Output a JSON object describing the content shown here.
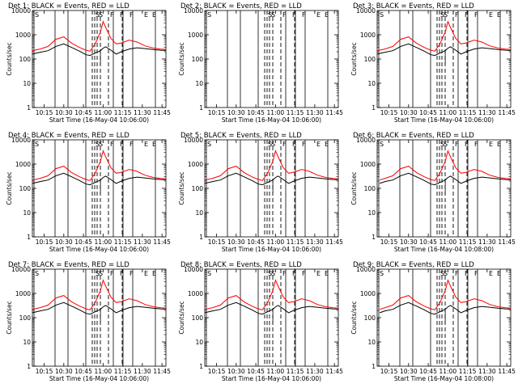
{
  "figure": {
    "colors": {
      "events": "#000000",
      "lld": "#ff0000"
    }
  },
  "chart_data": [
    {
      "type": "line",
      "title": "Det 1: BLACK = Events, RED = LLD",
      "xlabel": "Start Time (16-May-04 10:06:00)",
      "ylabel": "Counts/sec",
      "x_ticks": [
        "10:15",
        "10:30",
        "10:45",
        "11:00",
        "11:15",
        "11:30",
        "11:45"
      ],
      "y_ticks": [
        "1",
        "10",
        "100",
        "1000",
        "10000"
      ],
      "y_scale": "log",
      "ylim": [
        1,
        10000
      ],
      "xlim": [
        "10:06",
        "11:48"
      ],
      "markers": [
        "S",
        "S",
        "S",
        "F",
        "F",
        "F",
        "E",
        "E"
      ],
      "has_data": true,
      "x": [
        "10:06",
        "10:12",
        "10:18",
        "10:24",
        "10:30",
        "10:36",
        "10:42",
        "10:47",
        "10:50",
        "10:54",
        "10:58",
        "11:00",
        "11:02",
        "11:06",
        "11:10",
        "11:14",
        "11:20",
        "11:26",
        "11:32",
        "11:38",
        "11:44",
        "11:48"
      ],
      "series": [
        {
          "name": "Events",
          "color": "#000000",
          "values": [
            160,
            190,
            220,
            330,
            420,
            300,
            210,
            150,
            140,
            175,
            220,
            280,
            320,
            230,
            160,
            200,
            260,
            290,
            270,
            245,
            230,
            225
          ]
        },
        {
          "name": "LLD",
          "color": "#ff0000",
          "values": [
            220,
            260,
            330,
            650,
            820,
            450,
            300,
            230,
            210,
            420,
            1300,
            3500,
            2000,
            700,
            420,
            460,
            600,
            500,
            350,
            285,
            255,
            250
          ]
        }
      ]
    },
    {
      "type": "line",
      "title": "Det 2: BLACK = Events, RED = LLD",
      "xlabel": "Start Time (16-May-04 10:06:00)",
      "ylabel": "Counts/sec",
      "x_ticks": [
        "10:15",
        "10:30",
        "10:45",
        "11:00",
        "11:15",
        "11:30",
        "11:45"
      ],
      "y_ticks": [
        "1",
        "10",
        "100",
        "1000",
        "10000"
      ],
      "y_scale": "log",
      "ylim": [
        1,
        10000
      ],
      "xlim": [
        "10:06",
        "11:48"
      ],
      "markers": [
        "S",
        "S",
        "S",
        "F",
        "F",
        "F",
        "E",
        "E"
      ],
      "has_data": false,
      "x": [],
      "series": []
    },
    {
      "type": "line",
      "title": "Det 3: BLACK = Events, RED = LLD",
      "xlabel": "Start Time (16-May-04 10:06:00)",
      "ylabel": "Counts/sec",
      "x_ticks": [
        "10:15",
        "10:30",
        "10:45",
        "11:00",
        "11:15",
        "11:30",
        "11:45"
      ],
      "y_ticks": [
        "1",
        "10",
        "100",
        "1000",
        "10000"
      ],
      "y_scale": "log",
      "ylim": [
        1,
        10000
      ],
      "xlim": [
        "10:06",
        "11:48"
      ],
      "markers": [
        "S",
        "S",
        "S",
        "F",
        "F",
        "F",
        "E",
        "E"
      ],
      "has_data": true,
      "x": [
        "10:06",
        "10:12",
        "10:18",
        "10:24",
        "10:30",
        "10:36",
        "10:42",
        "10:47",
        "10:50",
        "10:54",
        "10:58",
        "11:00",
        "11:02",
        "11:06",
        "11:10",
        "11:14",
        "11:20",
        "11:26",
        "11:32",
        "11:38",
        "11:44",
        "11:48"
      ],
      "series": [
        {
          "name": "Events",
          "color": "#000000",
          "values": [
            160,
            190,
            220,
            330,
            420,
            300,
            210,
            150,
            140,
            175,
            220,
            280,
            320,
            230,
            160,
            200,
            260,
            290,
            270,
            245,
            230,
            225
          ]
        },
        {
          "name": "LLD",
          "color": "#ff0000",
          "values": [
            220,
            260,
            330,
            650,
            820,
            450,
            300,
            230,
            210,
            420,
            1300,
            3500,
            2000,
            700,
            420,
            460,
            600,
            500,
            350,
            285,
            255,
            250
          ]
        }
      ]
    },
    {
      "type": "line",
      "title": "Det 4: BLACK = Events, RED = LLD",
      "xlabel": "Start Time (16-May-04 10:06:00)",
      "ylabel": "Counts/sec",
      "x_ticks": [
        "10:15",
        "10:30",
        "10:45",
        "11:00",
        "11:15",
        "11:30",
        "11:45"
      ],
      "y_ticks": [
        "1",
        "10",
        "100",
        "1000",
        "10000"
      ],
      "y_scale": "log",
      "ylim": [
        1,
        10000
      ],
      "xlim": [
        "10:06",
        "11:48"
      ],
      "markers": [
        "S",
        "S",
        "S",
        "F",
        "F",
        "F",
        "E",
        "E"
      ],
      "has_data": true,
      "x": [
        "10:06",
        "10:12",
        "10:18",
        "10:24",
        "10:30",
        "10:36",
        "10:42",
        "10:47",
        "10:50",
        "10:54",
        "10:58",
        "11:00",
        "11:02",
        "11:06",
        "11:10",
        "11:14",
        "11:20",
        "11:26",
        "11:32",
        "11:38",
        "11:44",
        "11:48"
      ],
      "series": [
        {
          "name": "Events",
          "color": "#000000",
          "values": [
            160,
            190,
            220,
            330,
            420,
            300,
            210,
            150,
            140,
            175,
            220,
            280,
            320,
            230,
            160,
            200,
            260,
            290,
            270,
            245,
            230,
            225
          ]
        },
        {
          "name": "LLD",
          "color": "#ff0000",
          "values": [
            220,
            260,
            330,
            650,
            820,
            450,
            300,
            230,
            210,
            420,
            1300,
            3500,
            2000,
            700,
            420,
            460,
            600,
            500,
            350,
            285,
            255,
            250
          ]
        }
      ]
    },
    {
      "type": "line",
      "title": "Det 5: BLACK = Events, RED = LLD",
      "xlabel": "Start Time (16-May-04 10:06:00)",
      "ylabel": "Counts/sec",
      "x_ticks": [
        "10:15",
        "10:30",
        "10:45",
        "11:00",
        "11:15",
        "11:30",
        "11:45"
      ],
      "y_ticks": [
        "1",
        "10",
        "100",
        "1000",
        "10000"
      ],
      "y_scale": "log",
      "ylim": [
        1,
        10000
      ],
      "xlim": [
        "10:06",
        "11:48"
      ],
      "markers": [
        "S",
        "S",
        "S",
        "F",
        "F",
        "F",
        "E",
        "E"
      ],
      "has_data": true,
      "x": [
        "10:06",
        "10:12",
        "10:18",
        "10:24",
        "10:30",
        "10:36",
        "10:42",
        "10:47",
        "10:50",
        "10:54",
        "10:58",
        "11:00",
        "11:02",
        "11:06",
        "11:10",
        "11:14",
        "11:20",
        "11:26",
        "11:32",
        "11:38",
        "11:44",
        "11:48"
      ],
      "series": [
        {
          "name": "Events",
          "color": "#000000",
          "values": [
            160,
            190,
            220,
            330,
            420,
            300,
            210,
            150,
            140,
            175,
            220,
            280,
            320,
            230,
            160,
            200,
            260,
            290,
            270,
            245,
            230,
            225
          ]
        },
        {
          "name": "LLD",
          "color": "#ff0000",
          "values": [
            220,
            260,
            330,
            650,
            820,
            450,
            300,
            230,
            210,
            420,
            1300,
            3500,
            2000,
            700,
            420,
            460,
            600,
            500,
            350,
            285,
            255,
            250
          ]
        }
      ]
    },
    {
      "type": "line",
      "title": "Det 6: BLACK = Events, RED = LLD",
      "xlabel": "Start Time (16-May-04 10:08:00)",
      "ylabel": "Counts/sec",
      "x_ticks": [
        "10:15",
        "10:30",
        "10:45",
        "11:00",
        "11:15",
        "11:30",
        "11:45"
      ],
      "y_ticks": [
        "1",
        "10",
        "100",
        "1000",
        "10000"
      ],
      "y_scale": "log",
      "ylim": [
        1,
        10000
      ],
      "xlim": [
        "10:08",
        "11:48"
      ],
      "markers": [
        "S",
        "S",
        "S",
        "F",
        "F",
        "F",
        "E",
        "E"
      ],
      "has_data": true,
      "x": [
        "10:08",
        "10:12",
        "10:18",
        "10:24",
        "10:30",
        "10:36",
        "10:42",
        "10:47",
        "10:50",
        "10:54",
        "10:58",
        "11:00",
        "11:02",
        "11:06",
        "11:10",
        "11:14",
        "11:20",
        "11:26",
        "11:32",
        "11:38",
        "11:44",
        "11:48"
      ],
      "series": [
        {
          "name": "Events",
          "color": "#000000",
          "values": [
            160,
            190,
            220,
            330,
            420,
            300,
            210,
            150,
            140,
            175,
            220,
            280,
            320,
            230,
            160,
            200,
            260,
            290,
            270,
            245,
            230,
            225
          ]
        },
        {
          "name": "LLD",
          "color": "#ff0000",
          "values": [
            220,
            260,
            330,
            650,
            820,
            450,
            300,
            230,
            210,
            420,
            1300,
            3500,
            2000,
            700,
            420,
            460,
            600,
            500,
            350,
            285,
            255,
            250
          ]
        }
      ]
    },
    {
      "type": "line",
      "title": "Det 7: BLACK = Events, RED = LLD",
      "xlabel": "Start Time (16-May-04 10:06:00)",
      "ylabel": "Counts/sec",
      "x_ticks": [
        "10:15",
        "10:30",
        "10:45",
        "11:00",
        "11:15",
        "11:30",
        "11:45"
      ],
      "y_ticks": [
        "1",
        "10",
        "100",
        "1000",
        "10000"
      ],
      "y_scale": "log",
      "ylim": [
        1,
        10000
      ],
      "xlim": [
        "10:06",
        "11:48"
      ],
      "markers": [
        "S",
        "S",
        "S",
        "F",
        "F",
        "F",
        "E",
        "E"
      ],
      "has_data": true,
      "x": [
        "10:06",
        "10:12",
        "10:18",
        "10:24",
        "10:30",
        "10:36",
        "10:42",
        "10:47",
        "10:50",
        "10:54",
        "10:58",
        "11:00",
        "11:02",
        "11:06",
        "11:10",
        "11:14",
        "11:20",
        "11:26",
        "11:32",
        "11:38",
        "11:44",
        "11:48"
      ],
      "series": [
        {
          "name": "Events",
          "color": "#000000",
          "values": [
            160,
            190,
            220,
            330,
            420,
            300,
            210,
            150,
            140,
            175,
            220,
            280,
            320,
            230,
            160,
            200,
            260,
            290,
            270,
            245,
            230,
            225
          ]
        },
        {
          "name": "LLD",
          "color": "#ff0000",
          "values": [
            220,
            260,
            330,
            650,
            820,
            450,
            300,
            230,
            210,
            420,
            1300,
            3500,
            2000,
            700,
            420,
            460,
            600,
            500,
            350,
            285,
            255,
            250
          ]
        }
      ]
    },
    {
      "type": "line",
      "title": "Det 8: BLACK = Events, RED = LLD",
      "xlabel": "Start Time (16-May-04 10:06:00)",
      "ylabel": "Counts/sec",
      "x_ticks": [
        "10:15",
        "10:30",
        "10:45",
        "11:00",
        "11:15",
        "11:30",
        "11:45"
      ],
      "y_ticks": [
        "1",
        "10",
        "100",
        "1000",
        "10000"
      ],
      "y_scale": "log",
      "ylim": [
        1,
        10000
      ],
      "xlim": [
        "10:06",
        "11:48"
      ],
      "markers": [
        "S",
        "S",
        "S",
        "F",
        "F",
        "F",
        "E",
        "E"
      ],
      "has_data": true,
      "x": [
        "10:06",
        "10:12",
        "10:18",
        "10:24",
        "10:30",
        "10:36",
        "10:42",
        "10:47",
        "10:50",
        "10:54",
        "10:58",
        "11:00",
        "11:02",
        "11:06",
        "11:10",
        "11:14",
        "11:20",
        "11:26",
        "11:32",
        "11:38",
        "11:44",
        "11:48"
      ],
      "series": [
        {
          "name": "Events",
          "color": "#000000",
          "values": [
            160,
            190,
            220,
            330,
            420,
            300,
            210,
            150,
            140,
            175,
            220,
            280,
            320,
            230,
            160,
            200,
            260,
            290,
            270,
            245,
            230,
            225
          ]
        },
        {
          "name": "LLD",
          "color": "#ff0000",
          "values": [
            220,
            260,
            330,
            650,
            820,
            450,
            300,
            230,
            210,
            420,
            1300,
            3500,
            2000,
            700,
            420,
            460,
            600,
            500,
            350,
            285,
            255,
            250
          ]
        }
      ]
    },
    {
      "type": "line",
      "title": "Det 9: BLACK = Events, RED = LLD",
      "xlabel": "Start Time (16-May-04 10:08:00)",
      "ylabel": "Counts/sec",
      "x_ticks": [
        "10:15",
        "10:30",
        "10:45",
        "11:00",
        "11:15",
        "11:30",
        "11:45"
      ],
      "y_ticks": [
        "1",
        "10",
        "100",
        "1000",
        "10000"
      ],
      "y_scale": "log",
      "ylim": [
        1,
        10000
      ],
      "xlim": [
        "10:08",
        "11:48"
      ],
      "markers": [
        "S",
        "S",
        "S",
        "F",
        "F",
        "F",
        "E",
        "E"
      ],
      "has_data": true,
      "x": [
        "10:08",
        "10:12",
        "10:18",
        "10:24",
        "10:30",
        "10:36",
        "10:42",
        "10:47",
        "10:50",
        "10:54",
        "10:58",
        "11:00",
        "11:02",
        "11:06",
        "11:10",
        "11:14",
        "11:20",
        "11:26",
        "11:32",
        "11:38",
        "11:44",
        "11:48"
      ],
      "series": [
        {
          "name": "Events",
          "color": "#000000",
          "values": [
            160,
            190,
            220,
            330,
            420,
            300,
            210,
            150,
            140,
            175,
            220,
            280,
            320,
            230,
            160,
            200,
            260,
            290,
            270,
            245,
            230,
            225
          ]
        },
        {
          "name": "LLD",
          "color": "#ff0000",
          "values": [
            220,
            260,
            330,
            650,
            820,
            450,
            300,
            230,
            210,
            420,
            1300,
            3500,
            2000,
            700,
            420,
            460,
            600,
            500,
            350,
            285,
            255,
            250
          ]
        }
      ]
    }
  ]
}
